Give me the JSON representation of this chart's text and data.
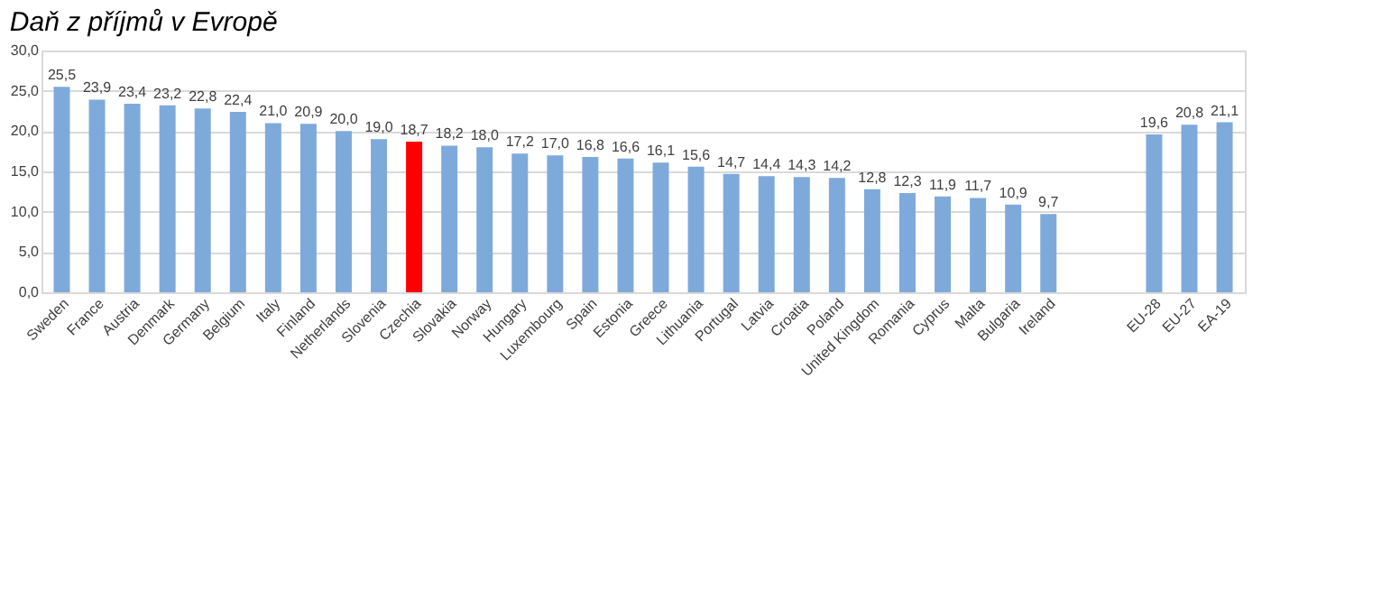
{
  "chart_data": {
    "type": "bar",
    "title": "Daň z příjmů v Evropě",
    "categories": [
      "Sweden",
      "France",
      "Austria",
      "Denmark",
      "Germany",
      "Belgium",
      "Italy",
      "Finland",
      "Netherlands",
      "Slovenia",
      "Czechia",
      "Slovakia",
      "Norway",
      "Hungary",
      "Luxembourg",
      "Spain",
      "Estonia",
      "Greece",
      "Lithuania",
      "Portugal",
      "Latvia",
      "Croatia",
      "Poland",
      "United Kingdom",
      "Romania",
      "Cyprus",
      "Malta",
      "Bulgaria",
      "Ireland",
      null,
      null,
      "EU-28",
      "EU-27",
      "EA-19"
    ],
    "values": [
      25.5,
      23.9,
      23.4,
      23.2,
      22.8,
      22.4,
      21.0,
      20.9,
      20.0,
      19.0,
      18.7,
      18.2,
      18.0,
      17.2,
      17.0,
      16.8,
      16.6,
      16.1,
      15.6,
      14.7,
      14.4,
      14.3,
      14.2,
      12.8,
      12.3,
      11.9,
      11.7,
      10.9,
      9.7,
      null,
      null,
      19.6,
      20.8,
      21.1
    ],
    "value_labels": [
      "25,5",
      "23,9",
      "23,4",
      "23,2",
      "22,8",
      "22,4",
      "21,0",
      "20,9",
      "20,0",
      "19,0",
      "18,7",
      "18,2",
      "18,0",
      "17,2",
      "17,0",
      "16,8",
      "16,6",
      "16,1",
      "15,6",
      "14,7",
      "14,4",
      "14,3",
      "14,2",
      "12,8",
      "12,3",
      "11,9",
      "11,7",
      "10,9",
      "9,7",
      null,
      null,
      "19,6",
      "20,8",
      "21,1"
    ],
    "colors": [
      "#7eaadb",
      "#7eaadb",
      "#7eaadb",
      "#7eaadb",
      "#7eaadb",
      "#7eaadb",
      "#7eaadb",
      "#7eaadb",
      "#7eaadb",
      "#7eaadb",
      "#ff0000",
      "#7eaadb",
      "#7eaadb",
      "#7eaadb",
      "#7eaadb",
      "#7eaadb",
      "#7eaadb",
      "#7eaadb",
      "#7eaadb",
      "#7eaadb",
      "#7eaadb",
      "#7eaadb",
      "#7eaadb",
      "#7eaadb",
      "#7eaadb",
      "#7eaadb",
      "#7eaadb",
      "#7eaadb",
      "#7eaadb",
      "#7eaadb",
      "#7eaadb",
      "#7eaadb",
      "#7eaadb",
      "#7eaadb"
    ],
    "ylim": [
      0,
      30
    ],
    "yticks": [
      {
        "value": 0,
        "label": "0,0"
      },
      {
        "value": 5,
        "label": "5,0"
      },
      {
        "value": 10,
        "label": "10,0"
      },
      {
        "value": 15,
        "label": "15,0"
      },
      {
        "value": 20,
        "label": "20,0"
      },
      {
        "value": 25,
        "label": "25,0"
      },
      {
        "value": 30,
        "label": "30,0"
      }
    ],
    "grid": "y"
  }
}
